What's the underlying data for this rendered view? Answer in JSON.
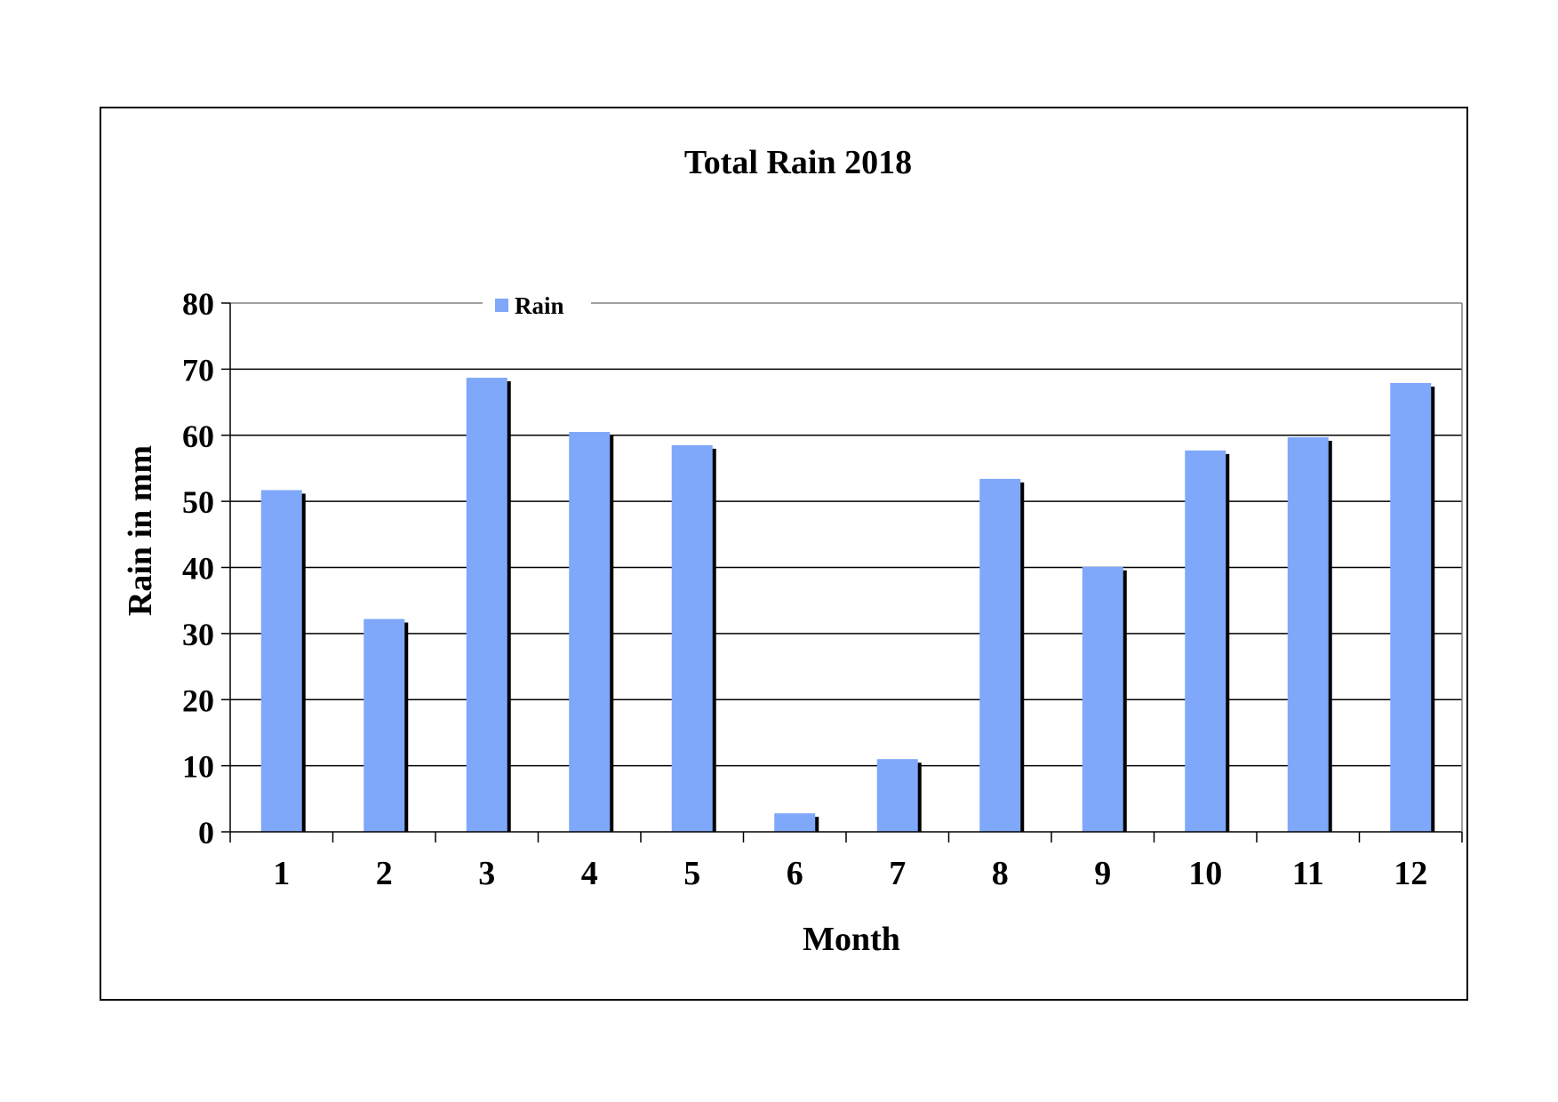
{
  "chart_data": {
    "type": "bar",
    "title": "Total Rain 2018",
    "xlabel": "Month",
    "ylabel": "Rain in mm",
    "categories": [
      "1",
      "2",
      "3",
      "4",
      "5",
      "6",
      "7",
      "8",
      "9",
      "10",
      "11",
      "12"
    ],
    "series": [
      {
        "name": "Rain",
        "color": "#7fa8fa",
        "values": [
          51.7,
          32.2,
          68.7,
          60.5,
          58.5,
          2.8,
          11.0,
          53.4,
          40.1,
          57.7,
          59.7,
          67.9
        ]
      }
    ],
    "ylim": [
      0,
      80
    ],
    "yticks": [
      "0",
      "10",
      "20",
      "30",
      "40",
      "50",
      "60",
      "70",
      "80"
    ],
    "grid": true,
    "legend": {
      "position": "top-left",
      "label": "Rain"
    }
  }
}
